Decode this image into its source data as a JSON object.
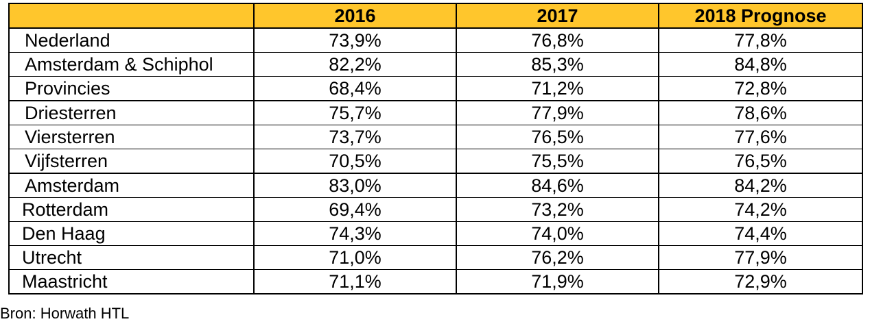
{
  "colors": {
    "header_bg": "#ffc62c",
    "border": "#000000",
    "text": "#000000"
  },
  "chart_data": {
    "type": "table",
    "columns": [
      "",
      "2016",
      "2017",
      "2018 Prognose"
    ],
    "rows": [
      {
        "label": "Nederland",
        "values": [
          "73,9%",
          "76,8%",
          "77,8%"
        ]
      },
      {
        "label": "Amsterdam & Schiphol",
        "values": [
          "82,2%",
          "85,3%",
          "84,8%"
        ]
      },
      {
        "label": "Provincies",
        "values": [
          "68,4%",
          "71,2%",
          "72,8%"
        ]
      },
      {
        "label": "Driesterren",
        "values": [
          "75,7%",
          "77,9%",
          "78,6%"
        ]
      },
      {
        "label": "Viersterren",
        "values": [
          "73,7%",
          "76,5%",
          "77,6%"
        ]
      },
      {
        "label": "Vijfsterren",
        "values": [
          "70,5%",
          "75,5%",
          "76,5%"
        ]
      },
      {
        "label": "Amsterdam",
        "values": [
          "83,0%",
          "84,6%",
          "84,2%"
        ]
      },
      {
        "label": "Rotterdam",
        "values": [
          "69,4%",
          "73,2%",
          "74,2%"
        ]
      },
      {
        "label": "Den Haag",
        "values": [
          "74,3%",
          "74,0%",
          "74,4%"
        ]
      },
      {
        "label": "Utrecht",
        "values": [
          "71,0%",
          "76,2%",
          "77,9%"
        ]
      },
      {
        "label": "Maastricht",
        "values": [
          "71,1%",
          "71,9%",
          "72,9%"
        ]
      }
    ],
    "row_groups": [
      3,
      3,
      5
    ]
  },
  "source": "Bron: Horwath HTL"
}
